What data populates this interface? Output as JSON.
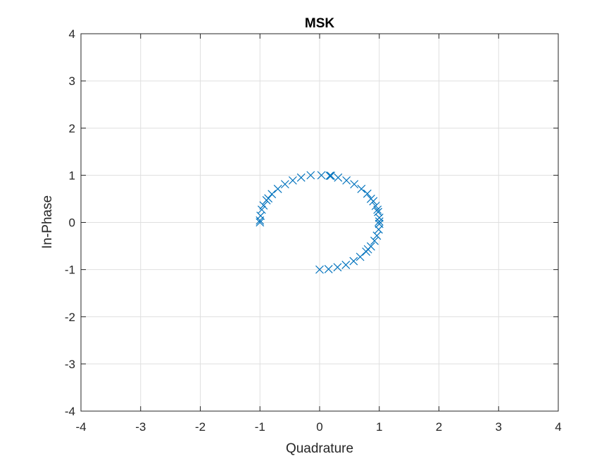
{
  "chart_data": {
    "type": "scatter",
    "title": "MSK",
    "xlabel": "Quadrature",
    "ylabel": "In-Phase",
    "xlim": [
      -4,
      4
    ],
    "ylim": [
      -4,
      4
    ],
    "xticks": [
      "-4",
      "-3",
      "-2",
      "-1",
      "0",
      "1",
      "2",
      "3",
      "4"
    ],
    "yticks": [
      "-4",
      "-3",
      "-2",
      "-1",
      "0",
      "1",
      "2",
      "3",
      "4"
    ],
    "grid": true,
    "marker": "x",
    "color": "#0072BD",
    "points": [
      {
        "x": 0.0,
        "y": -1.0
      },
      {
        "x": 0.15,
        "y": -0.99
      },
      {
        "x": 0.3,
        "y": -0.95
      },
      {
        "x": 0.44,
        "y": -0.9
      },
      {
        "x": 0.57,
        "y": -0.82
      },
      {
        "x": 0.68,
        "y": -0.73
      },
      {
        "x": 0.78,
        "y": -0.62
      },
      {
        "x": 0.81,
        "y": -0.57
      },
      {
        "x": 0.86,
        "y": -0.51
      },
      {
        "x": 0.92,
        "y": -0.39
      },
      {
        "x": 0.96,
        "y": -0.28
      },
      {
        "x": 0.99,
        "y": -0.15
      },
      {
        "x": 1.0,
        "y": -0.03
      },
      {
        "x": 1.0,
        "y": 0.02
      },
      {
        "x": 1.0,
        "y": 0.1
      },
      {
        "x": 0.98,
        "y": 0.22
      },
      {
        "x": 0.97,
        "y": 0.27
      },
      {
        "x": 0.94,
        "y": 0.35
      },
      {
        "x": 0.9,
        "y": 0.45
      },
      {
        "x": 0.86,
        "y": 0.5
      },
      {
        "x": 0.8,
        "y": 0.61
      },
      {
        "x": 0.7,
        "y": 0.71
      },
      {
        "x": 0.58,
        "y": 0.81
      },
      {
        "x": 0.45,
        "y": 0.89
      },
      {
        "x": 0.31,
        "y": 0.95
      },
      {
        "x": 0.19,
        "y": 0.99
      },
      {
        "x": 0.17,
        "y": 0.99
      },
      {
        "x": 0.03,
        "y": 1.0
      },
      {
        "x": -0.15,
        "y": 1.0
      },
      {
        "x": -0.31,
        "y": 0.95
      },
      {
        "x": -0.45,
        "y": 0.89
      },
      {
        "x": -0.58,
        "y": 0.81
      },
      {
        "x": -0.7,
        "y": 0.71
      },
      {
        "x": -0.8,
        "y": 0.6
      },
      {
        "x": -0.86,
        "y": 0.51
      },
      {
        "x": -0.89,
        "y": 0.47
      },
      {
        "x": -0.94,
        "y": 0.36
      },
      {
        "x": -0.97,
        "y": 0.27
      },
      {
        "x": -0.99,
        "y": 0.14
      },
      {
        "x": -1.0,
        "y": 0.04
      },
      {
        "x": -1.0,
        "y": 0.0
      }
    ]
  }
}
